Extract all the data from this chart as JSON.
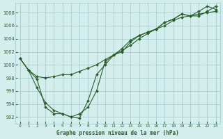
{
  "title": "Graphe pression niveau de la mer (hPa)",
  "background_color": "#d4eeee",
  "grid_color": "#aacece",
  "line_color": "#2a5e2a",
  "xlim": [
    -0.5,
    23.5
  ],
  "ylim": [
    991.0,
    1009.5
  ],
  "yticks": [
    992,
    994,
    996,
    998,
    1000,
    1002,
    1004,
    1006,
    1008
  ],
  "xticks": [
    0,
    1,
    2,
    3,
    4,
    5,
    6,
    7,
    8,
    9,
    10,
    11,
    12,
    13,
    14,
    15,
    16,
    17,
    18,
    19,
    20,
    21,
    22,
    23
  ],
  "hours": [
    0,
    1,
    2,
    3,
    4,
    5,
    6,
    7,
    8,
    9,
    10,
    11,
    12,
    13,
    14,
    15,
    16,
    17,
    18,
    19,
    20,
    21,
    22,
    23
  ],
  "line_zigzag": [
    1001.0,
    999.2,
    997.8,
    993.5,
    992.5,
    992.5,
    992.0,
    992.5,
    993.5,
    996.0,
    1000.5,
    1001.5,
    1002.0,
    1003.5,
    1004.5,
    1005.0,
    1005.5,
    1006.5,
    1007.0,
    1007.8,
    1007.5,
    1008.2,
    1009.0,
    1008.5
  ],
  "line_deep": [
    1001.0,
    999.2,
    996.5,
    994.2,
    993.0,
    992.5,
    992.0,
    991.8,
    994.5,
    998.5,
    1000.0,
    1001.5,
    1002.5,
    1003.8,
    1004.5,
    1005.0,
    1005.5,
    1006.5,
    1007.0,
    1007.8,
    1007.5,
    1007.5,
    1008.2,
    1009.0
  ],
  "line_straight": [
    1001.0,
    999.2,
    998.2,
    998.0,
    998.2,
    998.5,
    998.5,
    999.0,
    999.5,
    1000.0,
    1000.8,
    1001.5,
    1002.2,
    1003.0,
    1004.0,
    1004.8,
    1005.5,
    1006.0,
    1006.8,
    1007.3,
    1007.5,
    1007.8,
    1008.0,
    1008.2
  ]
}
